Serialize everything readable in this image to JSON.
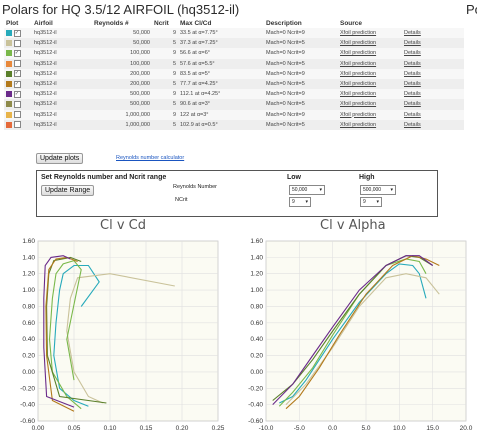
{
  "page_title": "Polars for HQ 3.5/12 AIRFOIL (hq3512-il)",
  "page_title_right": "Po",
  "table": {
    "headers": [
      "Plot",
      "Airfoil",
      "Reynolds #",
      "Ncrit",
      "Max Cl/Cd",
      "Description",
      "Source",
      ""
    ],
    "rows": [
      {
        "color": "#27aabb",
        "checked": true,
        "airfoil": "hq3512-il",
        "re": "50,000",
        "ncrit": "9",
        "max": "33.5 at α=7.75°",
        "desc": "Mach=0 Ncrit=9",
        "source": "Xfoil prediction",
        "details": "Details"
      },
      {
        "color": "#c9c29a",
        "checked": false,
        "airfoil": "hq3512-il",
        "re": "50,000",
        "ncrit": "5",
        "max": "37.3 at α=7.25°",
        "desc": "Mach=0 Ncrit=5",
        "source": "Xfoil prediction",
        "details": "Details"
      },
      {
        "color": "#7ab84a",
        "checked": true,
        "airfoil": "hq3512-il",
        "re": "100,000",
        "ncrit": "9",
        "max": "56.6 at α=6°",
        "desc": "Mach=0 Ncrit=9",
        "source": "Xfoil prediction",
        "details": "Details"
      },
      {
        "color": "#e8883a",
        "checked": false,
        "airfoil": "hq3512-il",
        "re": "100,000",
        "ncrit": "5",
        "max": "57.6 at α=5.5°",
        "desc": "Mach=0 Ncrit=5",
        "source": "Xfoil prediction",
        "details": "Details"
      },
      {
        "color": "#5a7f2a",
        "checked": true,
        "airfoil": "hq3512-il",
        "re": "200,000",
        "ncrit": "9",
        "max": "83.5 at α=5°",
        "desc": "Mach=0 Ncrit=9",
        "source": "Xfoil prediction",
        "details": "Details"
      },
      {
        "color": "#b37a1c",
        "checked": true,
        "airfoil": "hq3512-il",
        "re": "200,000",
        "ncrit": "5",
        "max": "77.7 at α=4.25°",
        "desc": "Mach=0 Ncrit=5",
        "source": "Xfoil prediction",
        "details": "Details"
      },
      {
        "color": "#6a2a8a",
        "checked": true,
        "airfoil": "hq3512-il",
        "re": "500,000",
        "ncrit": "9",
        "max": "112.1 at α=4.25°",
        "desc": "Mach=0 Ncrit=9",
        "source": "Xfoil prediction",
        "details": "Details"
      },
      {
        "color": "#8e8a4a",
        "checked": false,
        "airfoil": "hq3512-il",
        "re": "500,000",
        "ncrit": "5",
        "max": "90.6 at α=3°",
        "desc": "Mach=0 Ncrit=5",
        "source": "Xfoil prediction",
        "details": "Details"
      },
      {
        "color": "#e8b44a",
        "checked": false,
        "airfoil": "hq3512-il",
        "re": "1,000,000",
        "ncrit": "9",
        "max": "122 at α=3°",
        "desc": "Mach=0 Ncrit=9",
        "source": "Xfoil prediction",
        "details": "Details"
      },
      {
        "color": "#e56a3a",
        "checked": false,
        "airfoil": "hq3512-il",
        "re": "1,000,000",
        "ncrit": "5",
        "max": "102.9 at α=0.5°",
        "desc": "Mach=0 Ncrit=5",
        "source": "Xfoil prediction",
        "details": "Details"
      }
    ]
  },
  "update_plots_label": "Update plots",
  "reynolds_calc_link": "Reynolds number calculator",
  "range": {
    "title": "Set Reynolds number and Ncrit range",
    "button": "Update Range",
    "low_label": "Low",
    "high_label": "High",
    "re_label": "Reynolds Number",
    "ncrit_label": "NCrit",
    "re_low": "50,000",
    "re_high": "500,000",
    "ncrit_low": "9",
    "ncrit_high": "9"
  },
  "chart_data": [
    {
      "type": "line",
      "title": "Cl v Cd",
      "xlim": [
        0,
        0.25
      ],
      "ylim": [
        -0.6,
        1.6
      ],
      "xticks": [
        "0.00",
        "0.05",
        "0.10",
        "0.15",
        "0.20",
        "0.25"
      ],
      "yticks": [
        "1.60",
        "1.40",
        "1.20",
        "1.00",
        "0.80",
        "0.60",
        "0.40",
        "0.20",
        "0.00",
        "-0.20",
        "-0.40",
        "-0.60"
      ],
      "grid": true,
      "series": [
        {
          "color": "#27aabb",
          "points": [
            [
              0.07,
              -0.42
            ],
            [
              0.05,
              -0.35
            ],
            [
              0.03,
              -0.2
            ],
            [
              0.022,
              0.2
            ],
            [
              0.025,
              0.6
            ],
            [
              0.03,
              1.0
            ],
            [
              0.035,
              1.2
            ],
            [
              0.05,
              1.3
            ],
            [
              0.07,
              1.3
            ],
            [
              0.085,
              1.1
            ],
            [
              0.06,
              0.8
            ]
          ]
        },
        {
          "color": "#c9c29a",
          "points": [
            [
              0.09,
              -0.38
            ],
            [
              0.07,
              -0.3
            ],
            [
              0.05,
              0.0
            ],
            [
              0.04,
              0.5
            ],
            [
              0.045,
              0.9
            ],
            [
              0.055,
              1.15
            ],
            [
              0.1,
              1.2
            ],
            [
              0.19,
              1.05
            ]
          ]
        },
        {
          "color": "#7ab84a",
          "points": [
            [
              0.06,
              -0.45
            ],
            [
              0.04,
              -0.3
            ],
            [
              0.02,
              0.0
            ],
            [
              0.016,
              0.4
            ],
            [
              0.02,
              0.9
            ],
            [
              0.025,
              1.2
            ],
            [
              0.035,
              1.32
            ],
            [
              0.05,
              1.36
            ],
            [
              0.06,
              1.25
            ],
            [
              0.04,
              0.4
            ],
            [
              0.05,
              -0.1
            ]
          ]
        },
        {
          "color": "#5a7f2a",
          "points": [
            [
              0.095,
              -0.38
            ],
            [
              0.03,
              -0.3
            ],
            [
              0.013,
              0.2
            ],
            [
              0.012,
              0.8
            ],
            [
              0.015,
              1.2
            ],
            [
              0.022,
              1.36
            ],
            [
              0.045,
              1.4
            ],
            [
              0.06,
              1.35
            ]
          ]
        },
        {
          "color": "#b37a1c",
          "points": [
            [
              0.05,
              -0.48
            ],
            [
              0.02,
              -0.35
            ],
            [
              0.012,
              0.2
            ],
            [
              0.011,
              0.8
            ],
            [
              0.015,
              1.25
            ],
            [
              0.025,
              1.38
            ],
            [
              0.04,
              1.4
            ],
            [
              0.055,
              1.35
            ]
          ]
        },
        {
          "color": "#6a2a8a",
          "points": [
            [
              0.05,
              -0.43
            ],
            [
              0.012,
              -0.3
            ],
            [
              0.008,
              0.3
            ],
            [
              0.008,
              0.9
            ],
            [
              0.01,
              1.3
            ],
            [
              0.018,
              1.4
            ],
            [
              0.035,
              1.42
            ],
            [
              0.045,
              1.38
            ]
          ]
        }
      ]
    },
    {
      "type": "line",
      "title": "Cl v Alpha",
      "xlim": [
        -10,
        20
      ],
      "ylim": [
        -0.6,
        1.6
      ],
      "xticks": [
        "-10.0",
        "-5.0",
        "0.0",
        "5.0",
        "10.0",
        "15.0",
        "20.0"
      ],
      "yticks": [
        "1.60",
        "1.40",
        "1.20",
        "1.00",
        "0.80",
        "0.60",
        "0.40",
        "0.20",
        "0.00",
        "-0.20",
        "-0.40",
        "-0.60"
      ],
      "grid": true,
      "series": [
        {
          "color": "#27aabb",
          "points": [
            [
              -8,
              -0.38
            ],
            [
              -6,
              -0.3
            ],
            [
              -4,
              -0.1
            ],
            [
              0,
              0.4
            ],
            [
              4,
              0.85
            ],
            [
              8,
              1.2
            ],
            [
              10,
              1.32
            ],
            [
              12,
              1.3
            ],
            [
              13,
              1.2
            ],
            [
              14,
              0.9
            ]
          ]
        },
        {
          "color": "#c9c29a",
          "points": [
            [
              -7,
              -0.4
            ],
            [
              -4,
              -0.15
            ],
            [
              0,
              0.3
            ],
            [
              4,
              0.8
            ],
            [
              8,
              1.15
            ],
            [
              11,
              1.2
            ],
            [
              14,
              1.15
            ],
            [
              16,
              0.95
            ]
          ]
        },
        {
          "color": "#7ab84a",
          "points": [
            [
              -8,
              -0.42
            ],
            [
              -6,
              -0.25
            ],
            [
              -3,
              0.05
            ],
            [
              0,
              0.45
            ],
            [
              4,
              0.95
            ],
            [
              8,
              1.3
            ],
            [
              11,
              1.38
            ],
            [
              13,
              1.35
            ],
            [
              14,
              1.2
            ]
          ]
        },
        {
          "color": "#5a7f2a",
          "points": [
            [
              -9,
              -0.35
            ],
            [
              -6,
              -0.15
            ],
            [
              -3,
              0.15
            ],
            [
              0,
              0.5
            ],
            [
              4,
              0.95
            ],
            [
              8,
              1.3
            ],
            [
              11,
              1.42
            ],
            [
              13,
              1.4
            ],
            [
              15,
              1.3
            ]
          ]
        },
        {
          "color": "#b37a1c",
          "points": [
            [
              -7,
              -0.45
            ],
            [
              -5,
              -0.3
            ],
            [
              -2,
              0.05
            ],
            [
              1,
              0.45
            ],
            [
              5,
              0.95
            ],
            [
              9,
              1.3
            ],
            [
              12,
              1.42
            ],
            [
              14,
              1.38
            ],
            [
              16,
              1.3
            ]
          ]
        },
        {
          "color": "#6a2a8a",
          "points": [
            [
              -9,
              -0.4
            ],
            [
              -6,
              -0.15
            ],
            [
              -3,
              0.2
            ],
            [
              0,
              0.55
            ],
            [
              4,
              1.0
            ],
            [
              8,
              1.3
            ],
            [
              11,
              1.42
            ],
            [
              13,
              1.42
            ],
            [
              15,
              1.3
            ]
          ]
        }
      ]
    }
  ]
}
